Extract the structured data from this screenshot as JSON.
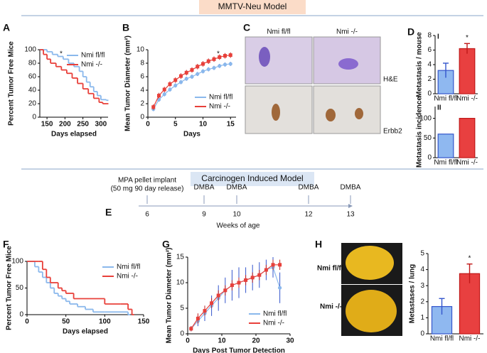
{
  "headers": [
    "MMTV-Neu Model",
    "Carcinogen Induced Model"
  ],
  "panel_c": {
    "letter": "C",
    "columns": [
      "Nmi fl/fl",
      "Nmi -/-"
    ],
    "rows": [
      "H&E",
      "Erbb2"
    ]
  },
  "panel_e": {
    "letter": "E",
    "axis_label": "Weeks of age",
    "events": [
      {
        "week": 6,
        "label": "MPA pellet implant",
        "note": "(50 mg 90 day release)"
      },
      {
        "week": 9,
        "label": "DMBA"
      },
      {
        "week": 10,
        "label": "DMBA"
      },
      {
        "week": 12,
        "label": "DMBA"
      },
      {
        "week": 13,
        "label": "DMBA"
      }
    ]
  },
  "panel_h": {
    "labels": [
      "Nmi fl/fl",
      "Nmi -/-"
    ]
  },
  "chart_data": [
    {
      "type": "step",
      "panel": "A",
      "xlabel": "Days elapsed",
      "ylabel": "Percent Tumor Free Mice",
      "annotation": "*",
      "xlim": [
        130,
        320
      ],
      "xticks": [
        150,
        200,
        250,
        300
      ],
      "ylim": [
        0,
        100
      ],
      "yticks": [
        0,
        20,
        40,
        60,
        80,
        100
      ],
      "legend": "upper right",
      "series": [
        {
          "name": "Nmi fl/fl",
          "color": "#8ab8ec",
          "x": [
            130,
            150,
            165,
            180,
            195,
            210,
            225,
            240,
            250,
            260,
            270,
            280,
            290,
            300,
            315
          ],
          "values": [
            100,
            97,
            93,
            90,
            86,
            80,
            75,
            68,
            60,
            52,
            45,
            38,
            32,
            26,
            25
          ]
        },
        {
          "name": "Nmi -/-",
          "color": "#e8403a",
          "x": [
            130,
            140,
            150,
            160,
            175,
            190,
            205,
            220,
            235,
            250,
            265,
            280,
            295,
            305,
            315
          ],
          "values": [
            100,
            93,
            86,
            80,
            75,
            70,
            65,
            58,
            50,
            42,
            35,
            28,
            22,
            20,
            20
          ]
        }
      ]
    },
    {
      "type": "errline",
      "panel": "B",
      "xlabel": "Days",
      "ylabel": "Mean Tumor Diameter (mm²)",
      "annotation": "*",
      "xlim": [
        0,
        16
      ],
      "xticks": [
        0,
        5,
        10,
        15
      ],
      "ylim": [
        0,
        10
      ],
      "yticks": [
        0,
        2,
        4,
        6,
        8,
        10
      ],
      "legend": "lower right",
      "x": [
        1,
        2,
        3,
        4,
        5,
        6,
        7,
        8,
        9,
        10,
        11,
        12,
        13,
        14,
        15
      ],
      "series": [
        {
          "name": "Nmi fl/fl",
          "color": "#8ab8ec",
          "marker": "circle",
          "values": [
            1.2,
            2.6,
            3.4,
            4.1,
            4.7,
            5.2,
            5.7,
            6.0,
            6.4,
            6.8,
            7.1,
            7.3,
            7.6,
            7.8,
            7.9
          ],
          "errors": [
            0.3,
            0.3,
            0.3,
            0.3,
            0.3,
            0.3,
            0.3,
            0.3,
            0.3,
            0.3,
            0.3,
            0.3,
            0.3,
            0.3,
            0.3
          ]
        },
        {
          "name": "Nmi -/-",
          "color": "#e8403a",
          "marker": "square",
          "values": [
            1.5,
            3.2,
            4.1,
            4.9,
            5.5,
            6.1,
            6.6,
            7.0,
            7.5,
            7.9,
            8.3,
            8.6,
            8.9,
            9.1,
            9.2
          ],
          "errors": [
            0.4,
            0.4,
            0.4,
            0.4,
            0.4,
            0.4,
            0.4,
            0.4,
            0.4,
            0.4,
            0.4,
            0.4,
            0.4,
            0.4,
            0.4
          ]
        }
      ]
    },
    {
      "type": "bar",
      "panel": "D",
      "label": "I",
      "ylabel": "Metastasis / mouse",
      "annotation": "*",
      "categories": [
        "Nmi fl/fl",
        "Nmi -/-"
      ],
      "values": [
        3.2,
        6.2
      ],
      "errors": [
        1.0,
        0.7
      ],
      "colors": [
        "#8fb8f0",
        "#e84040"
      ],
      "ylim": [
        0,
        8
      ],
      "yticks": [
        0,
        2,
        4,
        6,
        8
      ]
    },
    {
      "type": "bar",
      "label": "II",
      "ylabel": "Metastasis incidence",
      "categories": [
        "Nmi fl/fl",
        "Nmi -/-"
      ],
      "values": [
        60,
        100
      ],
      "colors": [
        "#8fb8f0",
        "#e84040"
      ],
      "ylim": [
        0,
        130
      ],
      "yticks": [
        0,
        50,
        100
      ]
    },
    {
      "type": "step",
      "panel": "F",
      "xlabel": "Days elapsed",
      "ylabel": "Percent Tumor Free Mice",
      "xlim": [
        0,
        150
      ],
      "xticks": [
        0,
        50,
        100,
        150
      ],
      "ylim": [
        0,
        100
      ],
      "yticks": [
        0,
        50,
        100
      ],
      "legend": "upper right",
      "series": [
        {
          "name": "Nmi fl/fl",
          "color": "#8ab8ec",
          "x": [
            0,
            10,
            15,
            20,
            25,
            30,
            35,
            40,
            45,
            50,
            55,
            65,
            75,
            85,
            100,
            130
          ],
          "values": [
            100,
            90,
            80,
            70,
            60,
            50,
            40,
            35,
            30,
            25,
            20,
            15,
            10,
            5,
            5,
            0
          ]
        },
        {
          "name": "Nmi -/-",
          "color": "#e8403a",
          "x": [
            0,
            15,
            20,
            25,
            30,
            40,
            45,
            50,
            60,
            80,
            100,
            120,
            130,
            135
          ],
          "values": [
            100,
            100,
            85,
            70,
            60,
            50,
            45,
            40,
            30,
            30,
            20,
            20,
            10,
            0
          ]
        }
      ]
    },
    {
      "type": "errline",
      "panel": "G",
      "xlabel": "Days Post Tumor Detection",
      "ylabel": "Mean Tumor Diameter (mm²)",
      "xlim": [
        0,
        30
      ],
      "xticks": [
        0,
        10,
        20,
        30
      ],
      "ylim": [
        0,
        15
      ],
      "yticks": [
        0,
        5,
        10,
        15
      ],
      "legend": "lower right",
      "x": [
        1,
        3,
        5,
        7,
        9,
        11,
        13,
        15,
        17,
        19,
        21,
        23,
        25,
        27
      ],
      "series": [
        {
          "name": "Nmi fl/fl",
          "color": "#8ab8ec",
          "marker": "circle",
          "values": [
            1,
            2.5,
            4,
            5.5,
            7,
            8.5,
            9.5,
            10,
            10.5,
            11,
            11.5,
            12.5,
            13,
            9
          ],
          "errors": [
            0.5,
            1,
            1.5,
            2,
            2.5,
            2.5,
            3,
            3,
            2.5,
            2.5,
            2.5,
            2,
            2,
            3
          ]
        },
        {
          "name": "Nmi -/-",
          "color": "#e8403a",
          "marker": "square",
          "values": [
            1,
            3,
            4.5,
            6,
            7.5,
            8.5,
            9.5,
            10,
            10.5,
            11,
            11.5,
            12.5,
            13.5,
            13.5
          ],
          "errors": [
            0.5,
            1,
            1,
            1,
            1,
            1,
            1,
            1,
            1,
            1,
            1,
            1,
            1,
            1
          ]
        }
      ]
    },
    {
      "type": "bar",
      "panel": "H",
      "ylabel": "Metastases / lung",
      "annotation": "*",
      "categories": [
        "Nmi fl/fl",
        "Nmi -/-"
      ],
      "values": [
        1.7,
        3.75
      ],
      "errors": [
        0.5,
        0.6
      ],
      "colors": [
        "#8fb8f0",
        "#e84040"
      ],
      "ylim": [
        0,
        5
      ],
      "yticks": [
        0,
        1,
        2,
        3,
        4,
        5
      ]
    }
  ]
}
